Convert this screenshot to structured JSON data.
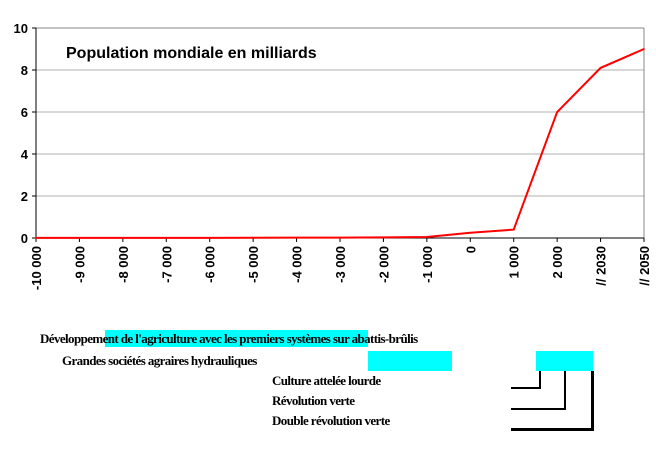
{
  "chart_data": {
    "type": "line",
    "title": "Population mondiale en milliards",
    "categories": [
      "-10 000",
      "-9 000",
      "-8 000",
      "-7 000",
      "-6 000",
      "-5 000",
      "-4 000",
      "-3 000",
      "-2 000",
      "-1 000",
      "0",
      "1 000",
      "2 000",
      "// 2030",
      "// 2050"
    ],
    "series": [
      {
        "name": "Population mondiale en milliards",
        "color": "#ff0000",
        "values": [
          0.005,
          0.005,
          0.005,
          0.006,
          0.007,
          0.01,
          0.015,
          0.02,
          0.03,
          0.05,
          0.25,
          0.4,
          6.0,
          8.1,
          9.0
        ]
      }
    ],
    "yticks": [
      0,
      2,
      4,
      6,
      8,
      10
    ],
    "ylim": [
      0,
      10
    ],
    "grid": true,
    "xlabel": "",
    "ylabel": ""
  },
  "annotations": {
    "a1": "Développement de l'agriculture avec les premiers systèmes sur abattis-brûlis",
    "a2": "Grandes sociétés agraires hydrauliques",
    "a3": "Culture attelée lourde",
    "a4": "Révolution verte",
    "a5": "Double révolution verte"
  }
}
